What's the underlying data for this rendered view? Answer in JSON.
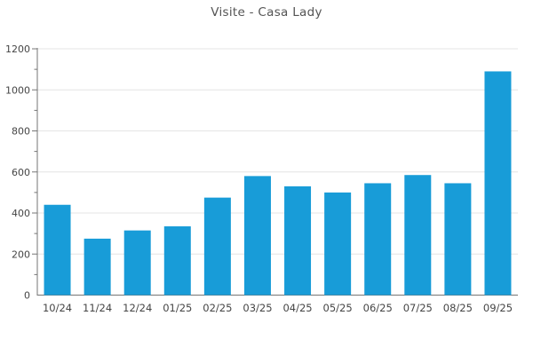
{
  "title": "Visite - Casa Lady",
  "chart_data": {
    "type": "bar",
    "title": "Visite - Casa Lady",
    "categories": [
      "10/24",
      "11/24",
      "12/24",
      "01/25",
      "02/25",
      "03/25",
      "04/25",
      "05/25",
      "06/25",
      "07/25",
      "08/25",
      "09/25"
    ],
    "values": [
      440,
      275,
      315,
      335,
      475,
      580,
      530,
      500,
      545,
      585,
      545,
      1090
    ],
    "xlabel": "",
    "ylabel": "",
    "ylim": [
      0,
      1200
    ],
    "y_major_ticks": [
      0,
      200,
      400,
      600,
      800,
      1000,
      1200
    ],
    "y_minor_step": 100,
    "grid": true,
    "legend": "none",
    "colors": {
      "bar": "#189cd8",
      "axis": "#757575",
      "grid": "#e4e4e4",
      "tick_label": "#454545",
      "title": "#545454"
    }
  }
}
